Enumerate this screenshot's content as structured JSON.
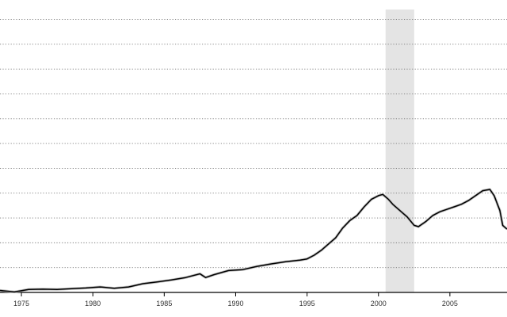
{
  "chart_data": {
    "type": "line",
    "title": "",
    "xlabel": "",
    "ylabel": "",
    "xlim": [
      1973.5,
      2009.0
    ],
    "ylim": [
      0,
      11.4
    ],
    "grid": {
      "horizontal": true,
      "style": "dotted"
    },
    "y_gridlines": [
      1,
      2,
      3,
      4,
      5,
      6,
      7,
      8,
      9,
      10,
      11
    ],
    "x_ticks": [
      1975,
      1980,
      1985,
      1990,
      1995,
      2000,
      2005
    ],
    "x_tick_labels": [
      "1975",
      "1980",
      "1985",
      "1990",
      "1995",
      "2000",
      "2005"
    ],
    "shaded_regions": [
      {
        "x_start": 2000.5,
        "x_end": 2002.5
      }
    ],
    "series": [
      {
        "color": "#000000",
        "x": [
          1973.5,
          1974.5,
          1975.5,
          1976.5,
          1977.5,
          1978.5,
          1979.5,
          1980.5,
          1981.5,
          1982.5,
          1983.5,
          1984.5,
          1985.5,
          1986.5,
          1987.5,
          1987.9,
          1988.5,
          1989.5,
          1990.5,
          1991.5,
          1992.5,
          1993.5,
          1994.5,
          1995.0,
          1995.5,
          1996.0,
          1996.5,
          1997.0,
          1997.5,
          1998.0,
          1998.5,
          1999.0,
          1999.5,
          2000.0,
          2000.3,
          2000.7,
          2001.0,
          2001.5,
          2002.0,
          2002.5,
          2002.8,
          2003.3,
          2003.8,
          2004.3,
          2004.8,
          2005.3,
          2005.8,
          2006.3,
          2006.8,
          2007.3,
          2007.8,
          2008.1,
          2008.5,
          2008.7,
          2009.0
        ],
        "y": [
          0.08,
          0.02,
          0.12,
          0.13,
          0.12,
          0.15,
          0.18,
          0.22,
          0.17,
          0.22,
          0.35,
          0.42,
          0.5,
          0.6,
          0.75,
          0.6,
          0.72,
          0.88,
          0.92,
          1.05,
          1.15,
          1.24,
          1.3,
          1.35,
          1.5,
          1.7,
          1.95,
          2.2,
          2.6,
          2.9,
          3.1,
          3.45,
          3.75,
          3.9,
          3.95,
          3.75,
          3.55,
          3.3,
          3.05,
          2.7,
          2.65,
          2.85,
          3.1,
          3.25,
          3.35,
          3.45,
          3.55,
          3.7,
          3.9,
          4.1,
          4.15,
          3.9,
          3.3,
          2.7,
          2.55
        ]
      }
    ]
  }
}
